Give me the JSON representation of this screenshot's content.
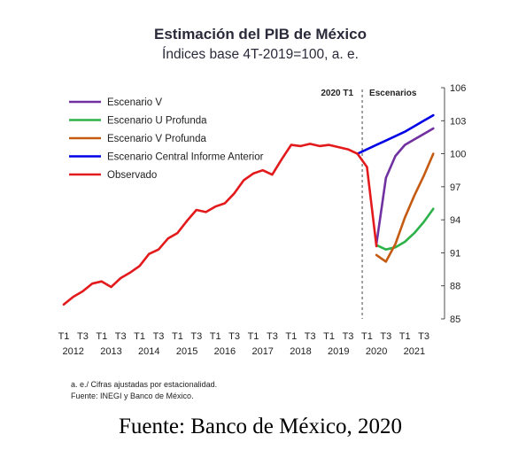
{
  "chart_data": {
    "type": "line",
    "title": "Estimación del PIB de México",
    "subtitle": "Índices base 4T-2019=100, a. e.",
    "ylim": [
      85,
      106
    ],
    "yticks": [
      85,
      88,
      91,
      94,
      97,
      100,
      103,
      106
    ],
    "x_quarter_labels": [
      "T1",
      "T3"
    ],
    "x_years": [
      "2012",
      "2013",
      "2014",
      "2015",
      "2016",
      "2017",
      "2018",
      "2019",
      "2020",
      "2021"
    ],
    "annotations": {
      "vline_label": "2020 T1",
      "region_label": "Escenarios"
    },
    "legend_position": "top-left",
    "series": [
      {
        "name": "Escenario V",
        "color": "#7030a0",
        "x": [
          "2020 T2",
          "2020 T3",
          "2020 T4",
          "2021 T1",
          "2021 T2",
          "2021 T3",
          "2021 T4"
        ],
        "values": [
          91.8,
          97.8,
          99.8,
          100.8,
          101.3,
          101.8,
          102.3
        ]
      },
      {
        "name": "Escenario U Profunda",
        "color": "#2db24a",
        "x": [
          "2020 T2",
          "2020 T3",
          "2020 T4",
          "2021 T1",
          "2021 T2",
          "2021 T3",
          "2021 T4"
        ],
        "values": [
          91.7,
          91.3,
          91.5,
          92.0,
          92.8,
          93.8,
          95.0
        ]
      },
      {
        "name": "Escenario V Profunda",
        "color": "#c55a11",
        "x": [
          "2020 T2",
          "2020 T3",
          "2020 T4",
          "2021 T1",
          "2021 T2",
          "2021 T3",
          "2021 T4"
        ],
        "values": [
          90.8,
          90.2,
          91.8,
          94.2,
          96.2,
          98.0,
          100.0
        ]
      },
      {
        "name": "Escenario Central Informe Anterior",
        "color": "#0000e6",
        "x": [
          "2019 T4",
          "2020 T1",
          "2020 T2",
          "2020 T3",
          "2020 T4",
          "2021 T1",
          "2021 T2",
          "2021 T3",
          "2021 T4"
        ],
        "values": [
          100.0,
          100.4,
          100.8,
          101.2,
          101.6,
          102.0,
          102.5,
          103.0,
          103.5
        ]
      },
      {
        "name": "Observado",
        "color": "#e31a1c",
        "x": [
          "2012 T1",
          "2012 T2",
          "2012 T3",
          "2012 T4",
          "2013 T1",
          "2013 T2",
          "2013 T3",
          "2013 T4",
          "2014 T1",
          "2014 T2",
          "2014 T3",
          "2014 T4",
          "2015 T1",
          "2015 T2",
          "2015 T3",
          "2015 T4",
          "2016 T1",
          "2016 T2",
          "2016 T3",
          "2016 T4",
          "2017 T1",
          "2017 T2",
          "2017 T3",
          "2017 T4",
          "2018 T1",
          "2018 T2",
          "2018 T3",
          "2018 T4",
          "2019 T1",
          "2019 T2",
          "2019 T3",
          "2019 T4",
          "2020 T1",
          "2020 T2"
        ],
        "values": [
          86.3,
          87.0,
          87.5,
          88.2,
          88.4,
          87.9,
          88.7,
          89.2,
          89.8,
          90.9,
          91.3,
          92.3,
          92.8,
          93.9,
          94.9,
          94.7,
          95.2,
          95.5,
          96.4,
          97.6,
          98.2,
          98.5,
          98.1,
          99.5,
          100.8,
          100.7,
          100.9,
          100.7,
          100.8,
          100.6,
          100.4,
          100.0,
          98.8,
          91.6
        ]
      }
    ]
  },
  "notes": [
    "a. e./ Cifras ajustadas por estacionalidad.",
    "Fuente: INEGI y Banco de México."
  ],
  "caption": "Fuente: Banco de México, 2020"
}
